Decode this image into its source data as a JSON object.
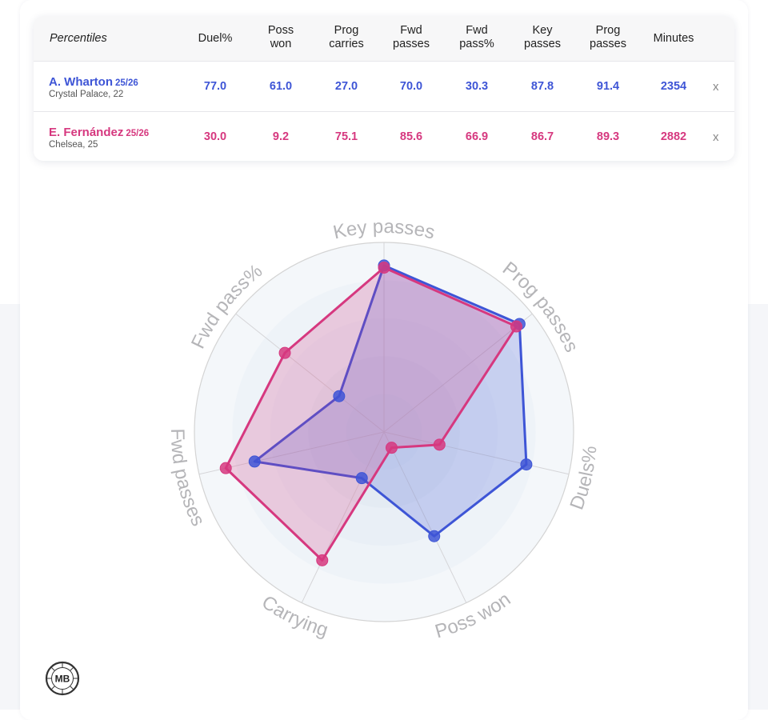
{
  "table": {
    "label": "Percentiles",
    "columns": [
      "Duel%",
      "Poss\nwon",
      "Prog\ncarries",
      "Fwd\npasses",
      "Fwd\npass%",
      "Key\npasses",
      "Prog\npasses",
      "Minutes"
    ],
    "players": [
      {
        "name": "A. Wharton",
        "season": "25/26",
        "info": "Crystal Palace, 22",
        "values": [
          "77.0",
          "61.0",
          "27.0",
          "70.0",
          "30.3",
          "87.8",
          "91.4",
          "2354"
        ],
        "remove_label": "x",
        "color": "#3e55d6"
      },
      {
        "name": "E. Fernández",
        "season": "25/26",
        "info": "Chelsea, 25",
        "values": [
          "30.0",
          "9.2",
          "75.1",
          "85.6",
          "66.9",
          "86.7",
          "89.3",
          "2882"
        ],
        "remove_label": "x",
        "color": "#d6387f"
      }
    ]
  },
  "chart_data": {
    "type": "radar",
    "axes": [
      "Key passes",
      "Prog passes",
      "Duels%",
      "Poss won",
      "Carrying",
      "Fwd passes",
      "Fwd pass%"
    ],
    "range": [
      0,
      100
    ],
    "series": [
      {
        "name": "A. Wharton",
        "color": "#3e55d6",
        "values": [
          87.8,
          91.4,
          77.0,
          61.0,
          27.0,
          70.0,
          30.3
        ]
      },
      {
        "name": "E. Fernández",
        "color": "#d6387f",
        "values": [
          86.7,
          89.3,
          30.0,
          9.2,
          75.1,
          85.6,
          66.9
        ]
      }
    ]
  },
  "logo": {
    "text": "MB"
  }
}
